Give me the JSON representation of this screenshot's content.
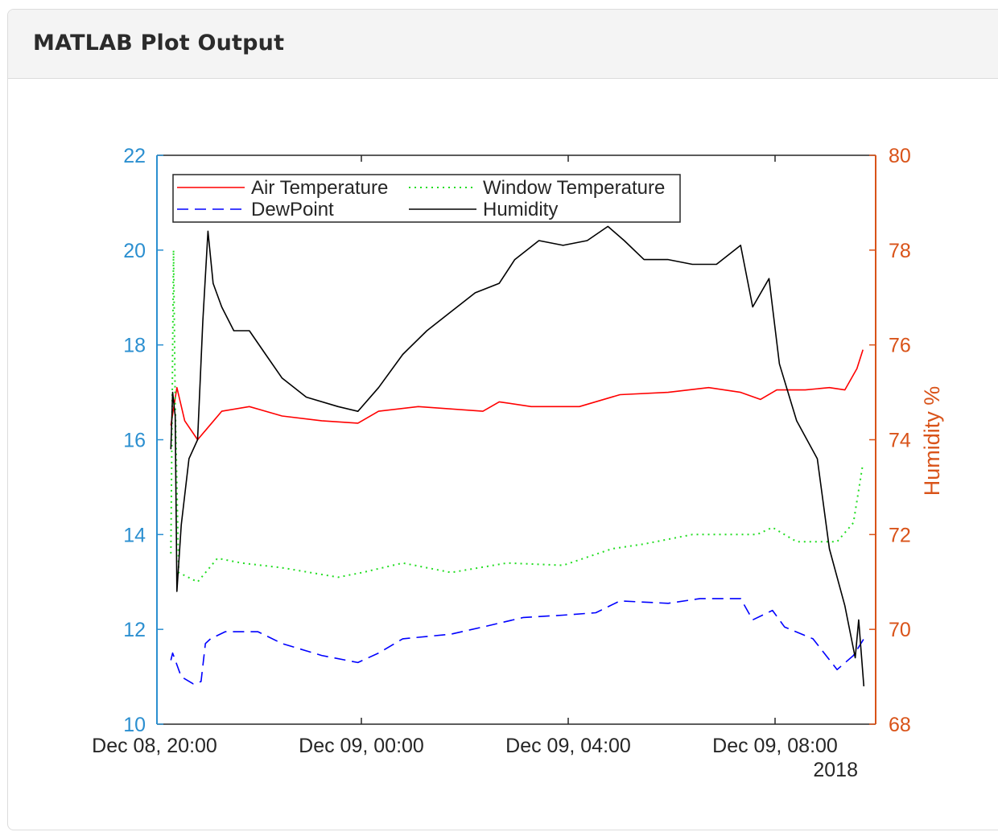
{
  "panel": {
    "title": "MATLAB Plot Output"
  },
  "chart_data": {
    "type": "line",
    "title": "",
    "xlabel": "",
    "ylabel_left": "",
    "ylabel_right": "Humidity %",
    "x_range": [
      "2018-12-08 20:00",
      "2018-12-09 09:54"
    ],
    "x_ticks": [
      "Dec 08, 20:00",
      "Dec 09, 00:00",
      "Dec 09, 04:00",
      "Dec 09, 08:00"
    ],
    "x_year_label": "2018",
    "ylim_left": [
      10,
      22
    ],
    "yticks_left": [
      "10",
      "12",
      "14",
      "16",
      "18",
      "20",
      "22"
    ],
    "ylim_right": [
      68,
      80
    ],
    "yticks_right": [
      "68",
      "70",
      "72",
      "74",
      "76",
      "78",
      "80"
    ],
    "grid": false,
    "legend_placement": "top-left",
    "colors": {
      "left_axis": "#2b8fd0",
      "right_axis": "#d95319"
    },
    "series": [
      {
        "name": "Air Temperature",
        "axis": "left",
        "color": "#ff0000",
        "style": "solid",
        "points": [
          [
            "2018-12-08 20:19",
            16.3
          ],
          [
            "2018-12-08 20:26",
            17.1
          ],
          [
            "2018-12-08 20:35",
            16.4
          ],
          [
            "2018-12-08 20:50",
            16.0
          ],
          [
            "2018-12-08 21:04",
            16.3
          ],
          [
            "2018-12-08 21:18",
            16.6
          ],
          [
            "2018-12-08 21:50",
            16.7
          ],
          [
            "2018-12-08 22:28",
            16.5
          ],
          [
            "2018-12-08 23:14",
            16.4
          ],
          [
            "2018-12-08 23:56",
            16.35
          ],
          [
            "2018-12-09 00:20",
            16.6
          ],
          [
            "2018-12-09 01:06",
            16.7
          ],
          [
            "2018-12-09 02:21",
            16.6
          ],
          [
            "2018-12-09 02:40",
            16.8
          ],
          [
            "2018-12-09 03:17",
            16.7
          ],
          [
            "2018-12-09 04:13",
            16.7
          ],
          [
            "2018-12-09 05:00",
            16.95
          ],
          [
            "2018-12-09 05:56",
            17.0
          ],
          [
            "2018-12-09 06:43",
            17.1
          ],
          [
            "2018-12-09 07:20",
            17.0
          ],
          [
            "2018-12-09 07:43",
            16.85
          ],
          [
            "2018-12-09 08:02",
            17.05
          ],
          [
            "2018-12-09 08:35",
            17.05
          ],
          [
            "2018-12-09 09:03",
            17.1
          ],
          [
            "2018-12-09 09:21",
            17.05
          ],
          [
            "2018-12-09 09:35",
            17.5
          ],
          [
            "2018-12-09 09:42",
            17.9
          ]
        ]
      },
      {
        "name": "Window Temperature",
        "axis": "left",
        "color": "#22dd22",
        "style": "dotted",
        "points": [
          [
            "2018-12-08 20:19",
            13.6
          ],
          [
            "2018-12-08 20:22",
            20.0
          ],
          [
            "2018-12-08 20:24",
            16.8
          ],
          [
            "2018-12-08 20:28",
            13.2
          ],
          [
            "2018-12-08 20:50",
            13.0
          ],
          [
            "2018-12-08 21:13",
            13.5
          ],
          [
            "2018-12-08 21:41",
            13.4
          ],
          [
            "2018-12-08 22:28",
            13.3
          ],
          [
            "2018-12-08 23:33",
            13.1
          ],
          [
            "2018-12-09 00:01",
            13.2
          ],
          [
            "2018-12-09 00:48",
            13.4
          ],
          [
            "2018-12-09 01:44",
            13.2
          ],
          [
            "2018-12-09 02:49",
            13.4
          ],
          [
            "2018-12-09 03:54",
            13.35
          ],
          [
            "2018-12-09 04:51",
            13.7
          ],
          [
            "2018-12-09 05:28",
            13.8
          ],
          [
            "2018-12-09 06:24",
            14.0
          ],
          [
            "2018-12-09 07:39",
            14.0
          ],
          [
            "2018-12-09 07:57",
            14.15
          ],
          [
            "2018-12-09 08:25",
            13.85
          ],
          [
            "2018-12-09 09:12",
            13.85
          ],
          [
            "2018-12-09 09:31",
            14.25
          ],
          [
            "2018-12-09 09:42",
            15.5
          ]
        ]
      },
      {
        "name": "DewPoint",
        "axis": "left",
        "color": "#0000ff",
        "style": "dashed",
        "points": [
          [
            "2018-12-08 20:19",
            11.35
          ],
          [
            "2018-12-08 20:21",
            11.5
          ],
          [
            "2018-12-08 20:31",
            11.0
          ],
          [
            "2018-12-08 20:45",
            10.85
          ],
          [
            "2018-12-08 20:54",
            10.9
          ],
          [
            "2018-12-08 20:59",
            11.7
          ],
          [
            "2018-12-08 21:05",
            11.8
          ],
          [
            "2018-12-08 21:22",
            11.95
          ],
          [
            "2018-12-08 22:00",
            11.95
          ],
          [
            "2018-12-08 22:28",
            11.7
          ],
          [
            "2018-12-08 23:14",
            11.45
          ],
          [
            "2018-12-08 23:56",
            11.3
          ],
          [
            "2018-12-09 00:20",
            11.5
          ],
          [
            "2018-12-09 00:48",
            11.8
          ],
          [
            "2018-12-09 01:44",
            11.9
          ],
          [
            "2018-12-09 02:21",
            12.05
          ],
          [
            "2018-12-09 03:08",
            12.25
          ],
          [
            "2018-12-09 03:54",
            12.3
          ],
          [
            "2018-12-09 04:32",
            12.35
          ],
          [
            "2018-12-09 05:00",
            12.6
          ],
          [
            "2018-12-09 05:56",
            12.55
          ],
          [
            "2018-12-09 06:33",
            12.65
          ],
          [
            "2018-12-09 07:20",
            12.65
          ],
          [
            "2018-12-09 07:34",
            12.2
          ],
          [
            "2018-12-09 07:57",
            12.4
          ],
          [
            "2018-12-09 08:11",
            12.05
          ],
          [
            "2018-12-09 08:44",
            11.8
          ],
          [
            "2018-12-09 09:12",
            11.15
          ],
          [
            "2018-12-09 09:31",
            11.45
          ],
          [
            "2018-12-09 09:43",
            11.8
          ]
        ]
      },
      {
        "name": "Humidity",
        "axis": "right",
        "color": "#000000",
        "style": "solid",
        "points": [
          [
            "2018-12-08 20:19",
            73.8
          ],
          [
            "2018-12-08 20:21",
            75.0
          ],
          [
            "2018-12-08 20:24",
            74.5
          ],
          [
            "2018-12-08 20:26",
            70.8
          ],
          [
            "2018-12-08 20:31",
            72.2
          ],
          [
            "2018-12-08 20:40",
            73.6
          ],
          [
            "2018-12-08 20:50",
            74.0
          ],
          [
            "2018-12-08 20:56",
            76.5
          ],
          [
            "2018-12-08 21:02",
            78.4
          ],
          [
            "2018-12-08 21:08",
            77.3
          ],
          [
            "2018-12-08 21:18",
            76.8
          ],
          [
            "2018-12-08 21:32",
            76.3
          ],
          [
            "2018-12-08 21:50",
            76.3
          ],
          [
            "2018-12-08 22:09",
            75.8
          ],
          [
            "2018-12-08 22:28",
            75.3
          ],
          [
            "2018-12-08 22:56",
            74.9
          ],
          [
            "2018-12-08 23:33",
            74.7
          ],
          [
            "2018-12-08 23:56",
            74.6
          ],
          [
            "2018-12-09 00:20",
            75.1
          ],
          [
            "2018-12-09 00:48",
            75.8
          ],
          [
            "2018-12-09 01:16",
            76.3
          ],
          [
            "2018-12-09 01:44",
            76.7
          ],
          [
            "2018-12-09 02:12",
            77.1
          ],
          [
            "2018-12-09 02:40",
            77.3
          ],
          [
            "2018-12-09 02:58",
            77.8
          ],
          [
            "2018-12-09 03:26",
            78.2
          ],
          [
            "2018-12-09 03:54",
            78.1
          ],
          [
            "2018-12-09 04:22",
            78.2
          ],
          [
            "2018-12-09 04:46",
            78.5
          ],
          [
            "2018-12-09 05:05",
            78.2
          ],
          [
            "2018-12-09 05:28",
            77.8
          ],
          [
            "2018-12-09 05:56",
            77.8
          ],
          [
            "2018-12-09 06:24",
            77.7
          ],
          [
            "2018-12-09 06:52",
            77.7
          ],
          [
            "2018-12-09 07:20",
            78.1
          ],
          [
            "2018-12-09 07:34",
            76.8
          ],
          [
            "2018-12-09 07:53",
            77.4
          ],
          [
            "2018-12-09 08:05",
            75.6
          ],
          [
            "2018-12-09 08:25",
            74.4
          ],
          [
            "2018-12-09 08:49",
            73.6
          ],
          [
            "2018-12-09 09:03",
            71.7
          ],
          [
            "2018-12-09 09:21",
            70.5
          ],
          [
            "2018-12-09 09:33",
            69.4
          ],
          [
            "2018-12-09 09:37",
            70.2
          ],
          [
            "2018-12-09 09:43",
            68.8
          ]
        ]
      }
    ]
  }
}
